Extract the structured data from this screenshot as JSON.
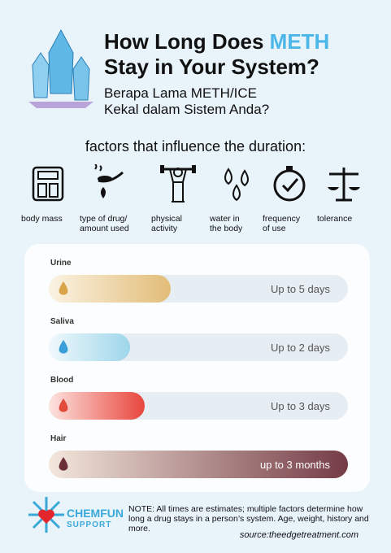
{
  "header": {
    "title_start": "How Long Does ",
    "title_highlight": "METH",
    "title_line2": "Stay in Your System?",
    "subtitle_line1": "Berapa Lama METH/ICE",
    "subtitle_line2": "Kekal dalam Sistem Anda?"
  },
  "factors": {
    "heading": "factors that influence the duration:",
    "items": [
      {
        "lines": [
          "body mass"
        ]
      },
      {
        "lines": [
          "type of drug/",
          "amount used"
        ]
      },
      {
        "lines": [
          "physical",
          "activity"
        ]
      },
      {
        "lines": [
          "water in",
          "the body"
        ]
      },
      {
        "lines": [
          "frequency",
          "of use"
        ]
      },
      {
        "lines": [
          "tolerance"
        ]
      }
    ]
  },
  "tests": [
    {
      "label": "Urine",
      "duration": "Up to 5 days"
    },
    {
      "label": "Saliva",
      "duration": "Up to 2 days"
    },
    {
      "label": "Blood",
      "duration": "Up to 3 days"
    },
    {
      "label": "Hair",
      "duration": "up to 3 months"
    }
  ],
  "footer": {
    "logo_line1": "CHEMFUN",
    "logo_line2": "SUPPORT",
    "note": "NOTE: All times are estimates; multiple factors determine how long a drug stays in a person’s system. Age, weight, history and more.",
    "source": "source:theedgetreatment.com"
  }
}
